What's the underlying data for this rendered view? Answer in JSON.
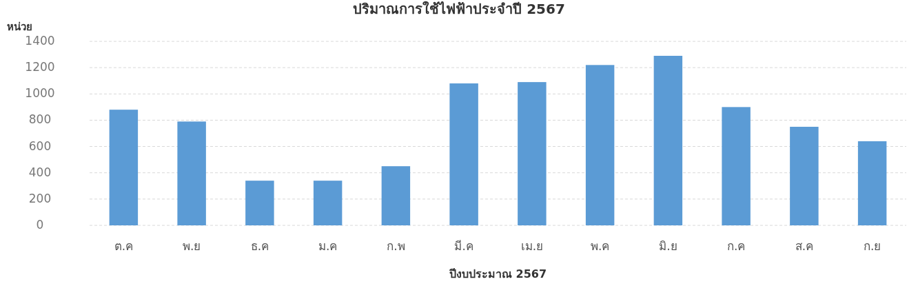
{
  "chart_data": {
    "type": "bar",
    "title": "ปริมาณการใช้ไฟฟ้าประจำปี 2567",
    "ylabel": "หน่วย",
    "xlabel": "ปีงบประมาณ 2567",
    "categories": [
      "ต.ค",
      "พ.ย",
      "ธ.ค",
      "ม.ค",
      "ก.พ",
      "มี.ค",
      "เม.ย",
      "พ.ค",
      "มิ.ย",
      "ก.ค",
      "ส.ค",
      "ก.ย"
    ],
    "values": [
      880,
      790,
      340,
      340,
      450,
      1080,
      1090,
      1220,
      1290,
      900,
      750,
      640
    ],
    "color": "#5b9bd5",
    "ylim": [
      0,
      1400
    ],
    "yticks": [
      0,
      200,
      400,
      600,
      800,
      1000,
      1200,
      1400
    ],
    "grid": "y"
  }
}
